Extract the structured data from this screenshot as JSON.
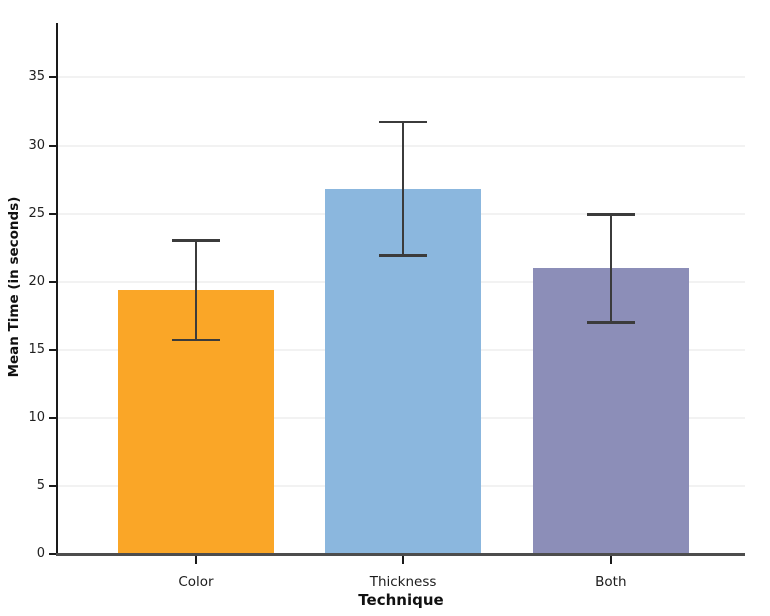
{
  "chart_data": {
    "type": "bar",
    "title": "",
    "xlabel": "Technique",
    "ylabel": "Mean Time (in seconds)",
    "categories": [
      "Color",
      "Thickness",
      "Both"
    ],
    "values": [
      19.4,
      26.8,
      21.0
    ],
    "error_low": [
      15.7,
      21.9,
      17.0
    ],
    "error_high": [
      23.0,
      31.7,
      24.9
    ],
    "bar_colors": [
      "#FAA627",
      "#8BB7DE",
      "#8C8EB8"
    ],
    "yticks": [
      0,
      5,
      10,
      15,
      20,
      25,
      30,
      35
    ],
    "ylim": [
      0,
      39
    ],
    "grid": "horizontal",
    "legend": "none",
    "colors": {
      "gridline": "#f2f2f2",
      "y_axis_line": "#1a1a1a",
      "x_axis_line": "#4d4d4d",
      "error_bar": "#3b3b3b",
      "tick_mark": "#1a1a1a"
    }
  }
}
